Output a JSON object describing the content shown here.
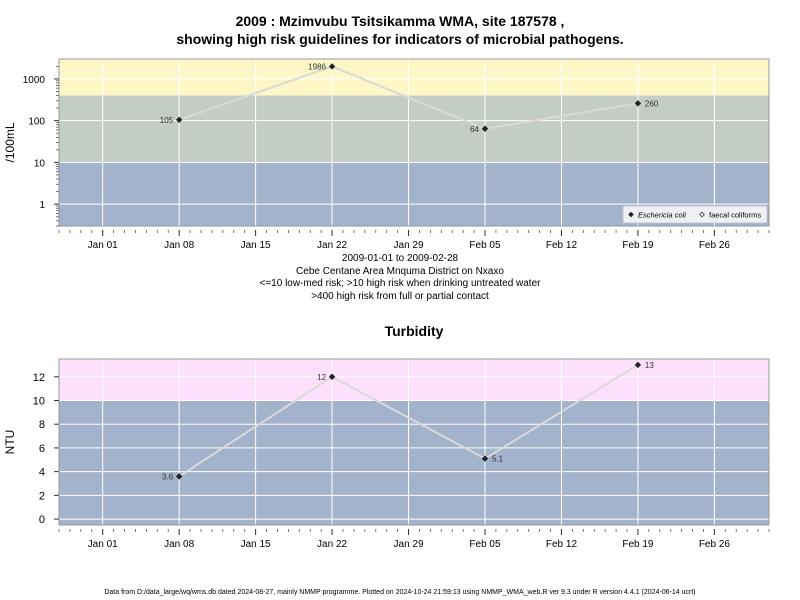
{
  "page": {
    "title_line1": "2009 : Mzimvubu Tsitsikamma WMA, site 187578 ,",
    "title_line2": "showing high risk guidelines for indicators of microbial pathogens.",
    "caption_lines": [
      "2009-01-01 to 2009-02-28",
      "Cebe Centane Area Mnquma District on Nxaxo",
      "<=10 low-med risk; >10 high risk when drinking untreated water",
      ">400 high risk from full or partial contact"
    ],
    "footer": "Data from D:/data_large/wq/wms.db dated 2024-08-27, mainly NMMP programme. Plotted on 2024-10-24 21:59:13 using NMMP_WMA_web.R ver 9.3 under R version 4.4.1 (2024-06-14 ucrt)"
  },
  "colors": {
    "band_low": "#a3b3cc",
    "band_mid": "#c3cdc3",
    "band_high_micro": "#fdf7c8",
    "band_high_turb": "#fde0fc",
    "line": "#d9d9d9",
    "grid": "#ffffff",
    "point": "#222222"
  },
  "chart_data": [
    {
      "type": "line",
      "title": "",
      "ylabel": "/100mL",
      "y_scale": "log",
      "ylim": [
        0.3,
        3000
      ],
      "yticks": [
        1,
        10,
        100,
        1000
      ],
      "ytick_labels": [
        "1",
        "10",
        "100",
        "1000"
      ],
      "xlim": [
        "2008-12-28",
        "2009-03-03"
      ],
      "xticks": [
        "2009-01-01",
        "2009-01-08",
        "2009-01-15",
        "2009-01-22",
        "2009-01-29",
        "2009-02-05",
        "2009-02-12",
        "2009-02-19",
        "2009-02-26"
      ],
      "xtick_labels": [
        "Jan 01",
        "Jan 08",
        "Jan 15",
        "Jan 22",
        "Jan 29",
        "Feb 05",
        "Feb 12",
        "Feb 19",
        "Feb 26"
      ],
      "bands": [
        {
          "from": 0.3,
          "to": 10,
          "color": "#a3b3cc"
        },
        {
          "from": 10,
          "to": 400,
          "color": "#c3cdc3"
        },
        {
          "from": 400,
          "to": 3000,
          "color": "#fdf7c8"
        }
      ],
      "grid": true,
      "legend_position": "bottom-right",
      "legend": [
        "Eschericia coli",
        "faecal coliforms"
      ],
      "series": [
        {
          "name": "Eschericia coli",
          "marker": "filled-diamond",
          "x": [
            "2009-01-08",
            "2009-01-22",
            "2009-02-05",
            "2009-02-19"
          ],
          "values": [
            105,
            1986,
            64,
            260
          ],
          "labels": [
            "105",
            "1986",
            "64",
            "260"
          ],
          "label_side": [
            "left",
            "left",
            "left",
            "right"
          ]
        }
      ]
    },
    {
      "type": "line",
      "title": "Turbidity",
      "ylabel": "NTU",
      "ylim": [
        -0.5,
        13.5
      ],
      "yticks": [
        0,
        2,
        4,
        6,
        8,
        10,
        12
      ],
      "ytick_labels": [
        "0",
        "2",
        "4",
        "6",
        "8",
        "10",
        "12"
      ],
      "xlim": [
        "2008-12-28",
        "2009-03-03"
      ],
      "xticks": [
        "2009-01-01",
        "2009-01-08",
        "2009-01-15",
        "2009-01-22",
        "2009-01-29",
        "2009-02-05",
        "2009-02-12",
        "2009-02-19",
        "2009-02-26"
      ],
      "xtick_labels": [
        "Jan 01",
        "Jan 08",
        "Jan 15",
        "Jan 22",
        "Jan 29",
        "Feb 05",
        "Feb 12",
        "Feb 19",
        "Feb 26"
      ],
      "bands": [
        {
          "from": -0.5,
          "to": 10,
          "color": "#a3b3cc"
        },
        {
          "from": 10,
          "to": 13.5,
          "color": "#fde0fc"
        }
      ],
      "grid": true,
      "series": [
        {
          "marker": "filled-diamond",
          "x": [
            "2009-01-08",
            "2009-01-22",
            "2009-02-05",
            "2009-02-19"
          ],
          "values": [
            3.6,
            12,
            5.1,
            13
          ],
          "labels": [
            "3.6",
            "12",
            "5.1",
            "13"
          ],
          "label_side": [
            "left",
            "left",
            "right",
            "right"
          ]
        }
      ]
    }
  ]
}
